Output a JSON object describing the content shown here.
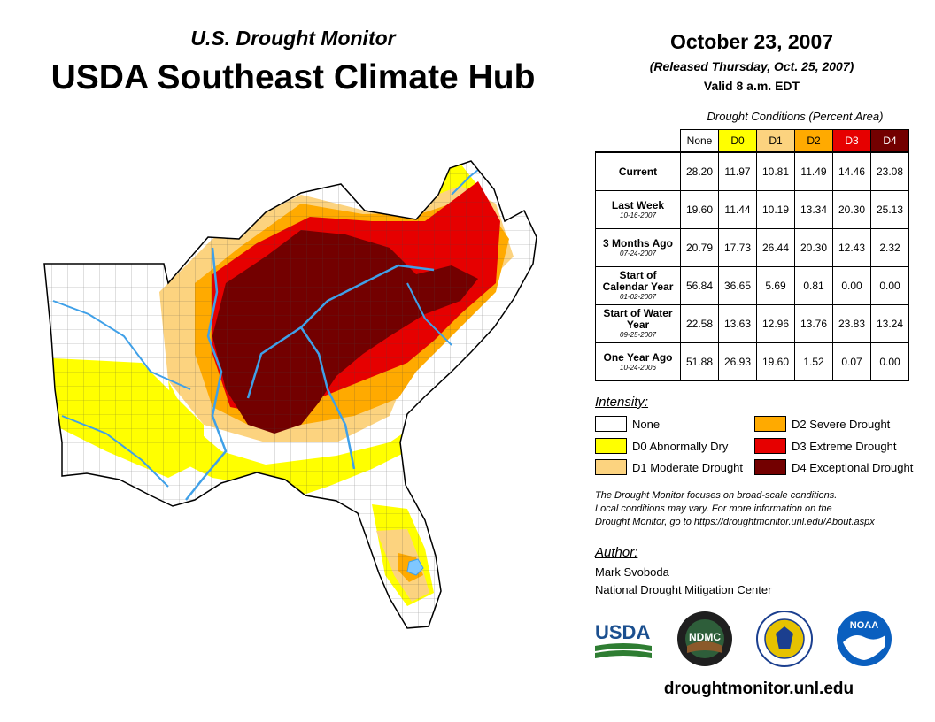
{
  "header": {
    "subtitle": "U.S. Drought Monitor",
    "title": "USDA Southeast Climate Hub",
    "date": "October 23, 2007",
    "released": "(Released Thursday, Oct. 25, 2007)",
    "valid": "Valid 8 a.m. EDT"
  },
  "table": {
    "title": "Drought Conditions (Percent Area)",
    "columns": [
      "None",
      "D0",
      "D1",
      "D2",
      "D3",
      "D4"
    ],
    "rows": [
      {
        "label": "Current",
        "date": "",
        "values": [
          "28.20",
          "11.97",
          "10.81",
          "11.49",
          "14.46",
          "23.08"
        ]
      },
      {
        "label": "Last Week",
        "date": "10-16-2007",
        "values": [
          "19.60",
          "11.44",
          "10.19",
          "13.34",
          "20.30",
          "25.13"
        ]
      },
      {
        "label": "3 Months Ago",
        "date": "07-24-2007",
        "values": [
          "20.79",
          "17.73",
          "26.44",
          "20.30",
          "12.43",
          "2.32"
        ]
      },
      {
        "label": "Start of Calendar Year",
        "date": "01-02-2007",
        "values": [
          "56.84",
          "36.65",
          "5.69",
          "0.81",
          "0.00",
          "0.00"
        ]
      },
      {
        "label": "Start of Water Year",
        "date": "09-25-2007",
        "values": [
          "22.58",
          "13.63",
          "12.96",
          "13.76",
          "23.83",
          "13.24"
        ]
      },
      {
        "label": "One Year Ago",
        "date": "10-24-2006",
        "values": [
          "51.88",
          "26.93",
          "19.60",
          "1.52",
          "0.07",
          "0.00"
        ]
      }
    ]
  },
  "legend": {
    "title": "Intensity:",
    "items": [
      {
        "label": "None",
        "color": "#ffffff"
      },
      {
        "label": "D0 Abnormally Dry",
        "color": "#ffff00"
      },
      {
        "label": "D1 Moderate Drought",
        "color": "#fcd37f"
      },
      {
        "label": "D2 Severe Drought",
        "color": "#ffaa00"
      },
      {
        "label": "D3 Extreme Drought",
        "color": "#e60000"
      },
      {
        "label": "D4 Exceptional Drought",
        "color": "#730000"
      }
    ]
  },
  "note": {
    "line1": "The Drought Monitor focuses on broad-scale conditions.",
    "line2": "Local conditions may vary. For more information on the",
    "line3": "Drought Monitor, go to https://droughtmonitor.unl.edu/About.aspx"
  },
  "author": {
    "title": "Author:",
    "name": "Mark Svoboda",
    "org": "National Drought Mitigation Center"
  },
  "logos": {
    "usda": "USDA",
    "ndmc": "NDMC",
    "noaa": "NOAA"
  },
  "url": "droughtmonitor.unl.edu"
}
